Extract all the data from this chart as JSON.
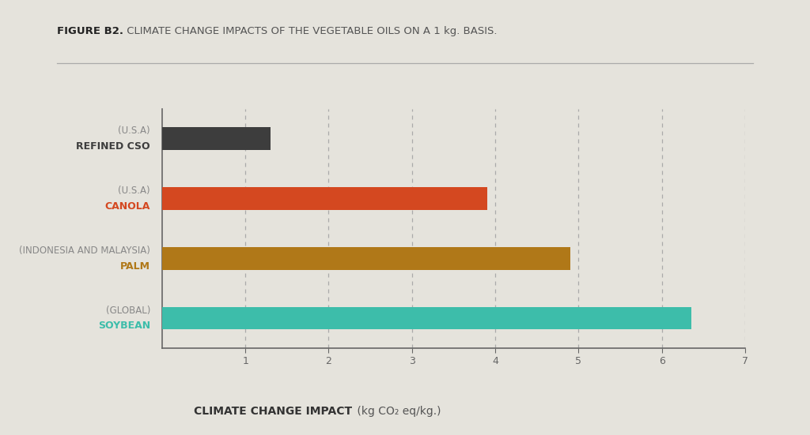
{
  "title_bold": "FIGURE B2.",
  "title_regular": " CLIMATE CHANGE IMPACTS OF THE VEGETABLE OILS ON A 1 kg. BASIS.",
  "categories_bold": [
    "REFINED CSO",
    "CANOLA",
    "PALM",
    "SOYBEAN"
  ],
  "categories_sub": [
    "(U.S.A)",
    "(U.S.A)",
    "(INDONESIA AND MALAYSIA)",
    "(GLOBAL)"
  ],
  "values": [
    1.3,
    3.9,
    4.9,
    6.35
  ],
  "bar_colors": [
    "#3d3d3d",
    "#d44820",
    "#b07818",
    "#3dbdaa"
  ],
  "label_colors": [
    "#3d3d3d",
    "#d44820",
    "#b07818",
    "#3dbdaa"
  ],
  "sub_color": "#888888",
  "xlabel_bold": "CLIMATE CHANGE IMPACT",
  "xlabel_regular": " (kg CO₂ eq/kg.)",
  "xlim": [
    0,
    7
  ],
  "xticks": [
    1,
    2,
    3,
    4,
    5,
    6,
    7
  ],
  "background_color": "#e5e3dc",
  "plot_bg_color": "#e5e3dc",
  "bar_height": 0.38,
  "grid_color": "#aaaaaa",
  "axis_color": "#666666",
  "title_fontsize": 9.5,
  "label_fontsize": 9,
  "sub_fontsize": 8.5,
  "xlabel_fontsize": 10
}
